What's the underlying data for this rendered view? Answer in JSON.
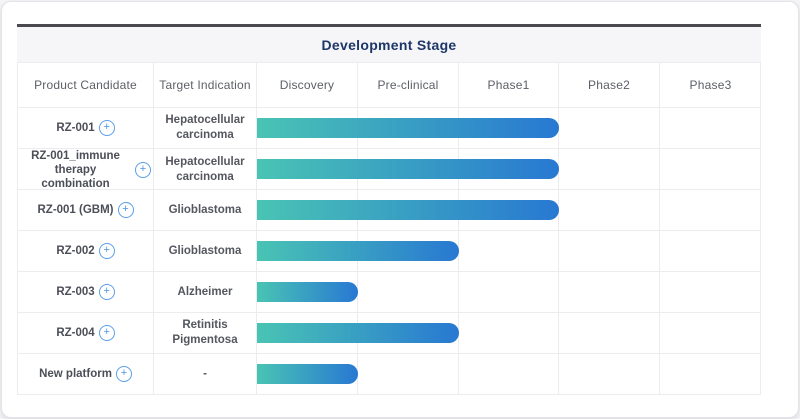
{
  "chart_data": {
    "type": "bar",
    "orientation": "horizontal",
    "title": "Development Stage",
    "columns": [
      "Product Candidate",
      "Target Indication",
      "Discovery",
      "Pre-clinical",
      "Phase1",
      "Phase2",
      "Phase3"
    ],
    "stages": [
      "Discovery",
      "Pre-clinical",
      "Phase1",
      "Phase2",
      "Phase3"
    ],
    "rows": [
      {
        "candidate": "RZ-001",
        "indication": "Hepatocellular carcinoma",
        "stage_reached": "Phase1",
        "stage_span": 3
      },
      {
        "candidate": "RZ-001_immune therapy combination",
        "indication": "Hepatocellular carcinoma",
        "stage_reached": "Phase1",
        "stage_span": 3
      },
      {
        "candidate": "RZ-001 (GBM)",
        "indication": "Glioblastoma",
        "stage_reached": "Phase1",
        "stage_span": 3
      },
      {
        "candidate": "RZ-002",
        "indication": "Glioblastoma",
        "stage_reached": "Pre-clinical",
        "stage_span": 2
      },
      {
        "candidate": "RZ-003",
        "indication": "Alzheimer",
        "stage_reached": "Discovery",
        "stage_span": 1
      },
      {
        "candidate": "RZ-004",
        "indication": "Retinitis Pigmentosa",
        "stage_reached": "Pre-clinical",
        "stage_span": 2
      },
      {
        "candidate": "New platform",
        "indication": "-",
        "stage_reached": "Discovery",
        "stage_span": 1
      }
    ],
    "bar_gradient": [
      "#49C4B4",
      "#2878D2"
    ],
    "legend": "none",
    "grid": "on"
  },
  "icons": {
    "plus": "+"
  },
  "colors": {
    "title_text": "#1D3768",
    "bar_start": "#49C4B4",
    "bar_end": "#2878D2",
    "accent_blue": "#4A96E4",
    "top_border": "#4A4A4E",
    "grid_line": "#ECECF0",
    "band_bg": "#F6F6F8"
  }
}
